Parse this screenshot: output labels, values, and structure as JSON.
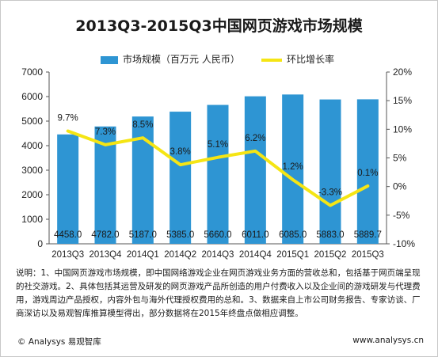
{
  "title": "2013Q3-2015Q3中国网页游戏市场规模",
  "legend": {
    "bar_label": "市场规模（百万元 人民币）",
    "line_label": "环比增长率"
  },
  "colors": {
    "bar": "#2e95d3",
    "line": "#f5e514",
    "axis": "#555555"
  },
  "chart_data": {
    "type": "bar",
    "title": "2013Q3-2015Q3中国网页游戏市场规模",
    "categories": [
      "2013Q3",
      "2013Q4",
      "2014Q1",
      "2014Q2",
      "2014Q3",
      "2014Q4",
      "2015Q1",
      "2015Q2",
      "2015Q3"
    ],
    "series": [
      {
        "name": "市场规模（百万元 人民币）",
        "type": "bar",
        "axis": "left",
        "values": [
          4458.0,
          4782.0,
          5187.0,
          5385.0,
          5660.0,
          6011.0,
          6085.0,
          5883.0,
          5889.7
        ],
        "labels": [
          "4458.0",
          "4782.0",
          "5187.0",
          "5385.0",
          "5660.0",
          "6011.0",
          "6085.0",
          "5883.0",
          "5889.7"
        ]
      },
      {
        "name": "环比增长率",
        "type": "line",
        "axis": "right",
        "values": [
          9.7,
          7.3,
          8.5,
          3.8,
          5.1,
          6.2,
          1.2,
          -3.3,
          0.1
        ],
        "labels": [
          "9.7%",
          "7.3%",
          "8.5%",
          "3.8%",
          "5.1%",
          "6.2%",
          "1.2%",
          "-3.3%",
          "0.1%"
        ]
      }
    ],
    "y_left": {
      "min": 0,
      "max": 7000,
      "ticks": [
        "0",
        "1000",
        "2000",
        "3000",
        "4000",
        "5000",
        "6000",
        "7000"
      ]
    },
    "y_right": {
      "min": -10,
      "max": 20,
      "ticks": [
        "-10%",
        "-5%",
        "0%",
        "5%",
        "10%",
        "15%",
        "20%"
      ]
    },
    "grid": false,
    "legend_position": "top"
  },
  "note": "说明：1、中国网页游戏市场规模，即中国网络游戏企业在网页游戏业务方面的营收总和，包括基于网页端呈现的社交游戏。2、具体包括其运营及研发的网页游戏产品所创造的用户付费收入以及企业间的游戏研发与代理费用，游戏周边产品授权，内容外包与海外代理授权费用的总和。3、数据来自上市公司财务报告、专家访谈、厂商深访以及易观智库推算模型得出，部分数据将在2015年终盘点做相应调整。",
  "footer": {
    "left": "© Analysys 易观智库",
    "right": "www.analysys.cn"
  }
}
